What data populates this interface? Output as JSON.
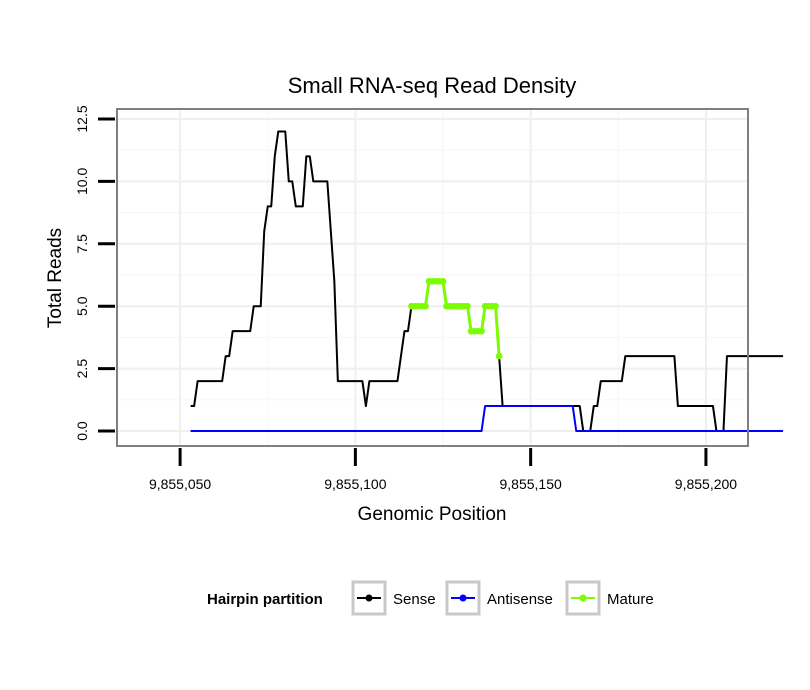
{
  "chart_data": {
    "type": "line",
    "title": "Small RNA-seq Read Density",
    "xlabel": "Genomic Position",
    "ylabel": "Total Reads",
    "xlim": [
      9855032,
      9855212
    ],
    "ylim": [
      -0.6,
      12.9
    ],
    "x_ticks": [
      {
        "value": 9855050,
        "label": "9,855,050"
      },
      {
        "value": 9855100,
        "label": "9,855,100"
      },
      {
        "value": 9855150,
        "label": "9,855,150"
      },
      {
        "value": 9855200,
        "label": "9,855,200"
      }
    ],
    "y_ticks": [
      {
        "value": 0,
        "label": "0.0"
      },
      {
        "value": 2.5,
        "label": "2.5"
      },
      {
        "value": 5,
        "label": "5.0"
      },
      {
        "value": 7.5,
        "label": "7.5"
      },
      {
        "value": 10,
        "label": "10.0"
      },
      {
        "value": 12.5,
        "label": "12.5"
      }
    ],
    "grid": true,
    "legend": {
      "title": "Hairpin partition",
      "position": "bottom"
    },
    "series": [
      {
        "name": "Sense",
        "color": "#000000",
        "points": [
          [
            9855053,
            1
          ],
          [
            9855054,
            1
          ],
          [
            9855055,
            2
          ],
          [
            9855062,
            2
          ],
          [
            9855063,
            3
          ],
          [
            9855064,
            3
          ],
          [
            9855065,
            4
          ],
          [
            9855070,
            4
          ],
          [
            9855071,
            5
          ],
          [
            9855073,
            5
          ],
          [
            9855074,
            8
          ],
          [
            9855075,
            9
          ],
          [
            9855076,
            9
          ],
          [
            9855077,
            11
          ],
          [
            9855078,
            12
          ],
          [
            9855080,
            12
          ],
          [
            9855081,
            10
          ],
          [
            9855082,
            10
          ],
          [
            9855083,
            9
          ],
          [
            9855085,
            9
          ],
          [
            9855086,
            11
          ],
          [
            9855087,
            11
          ],
          [
            9855088,
            10
          ],
          [
            9855092,
            10
          ],
          [
            9855094,
            6
          ],
          [
            9855095,
            2
          ],
          [
            9855102,
            2
          ],
          [
            9855103,
            1
          ],
          [
            9855104,
            2
          ],
          [
            9855112,
            2
          ],
          [
            9855114,
            4
          ],
          [
            9855115,
            4
          ],
          [
            9855116,
            5
          ],
          [
            9855120,
            5
          ],
          [
            9855121,
            6
          ],
          [
            9855125,
            6
          ],
          [
            9855126,
            5
          ],
          [
            9855132,
            5
          ],
          [
            9855133,
            4
          ],
          [
            9855136,
            4
          ],
          [
            9855137,
            5
          ],
          [
            9855140,
            5
          ],
          [
            9855141,
            3
          ],
          [
            9855142,
            1
          ],
          [
            9855164,
            1
          ],
          [
            9855165,
            0
          ],
          [
            9855167,
            0
          ],
          [
            9855168,
            1
          ],
          [
            9855169,
            1
          ],
          [
            9855170,
            2
          ],
          [
            9855176,
            2
          ],
          [
            9855177,
            3
          ],
          [
            9855191,
            3
          ],
          [
            9855192,
            1
          ],
          [
            9855202,
            1
          ],
          [
            9855203,
            0
          ],
          [
            9855205,
            0
          ],
          [
            9855206,
            3
          ],
          [
            9855222,
            3
          ]
        ]
      },
      {
        "name": "Antisense",
        "color": "#0000ff",
        "points": [
          [
            9855053,
            0
          ],
          [
            9855136,
            0
          ],
          [
            9855137,
            1
          ],
          [
            9855162,
            1
          ],
          [
            9855163,
            0
          ],
          [
            9855222,
            0
          ]
        ]
      },
      {
        "name": "Mature",
        "color": "#7cfc00",
        "points": [
          [
            9855116,
            5
          ],
          [
            9855117,
            5
          ],
          [
            9855118,
            5
          ],
          [
            9855119,
            5
          ],
          [
            9855120,
            5
          ],
          [
            9855121,
            6
          ],
          [
            9855122,
            6
          ],
          [
            9855123,
            6
          ],
          [
            9855124,
            6
          ],
          [
            9855125,
            6
          ],
          [
            9855126,
            5
          ],
          [
            9855127,
            5
          ],
          [
            9855128,
            5
          ],
          [
            9855129,
            5
          ],
          [
            9855130,
            5
          ],
          [
            9855131,
            5
          ],
          [
            9855132,
            5
          ],
          [
            9855133,
            4
          ],
          [
            9855134,
            4
          ],
          [
            9855135,
            4
          ],
          [
            9855136,
            4
          ],
          [
            9855137,
            5
          ],
          [
            9855138,
            5
          ],
          [
            9855139,
            5
          ],
          [
            9855140,
            5
          ],
          [
            9855141,
            3
          ]
        ]
      }
    ]
  }
}
